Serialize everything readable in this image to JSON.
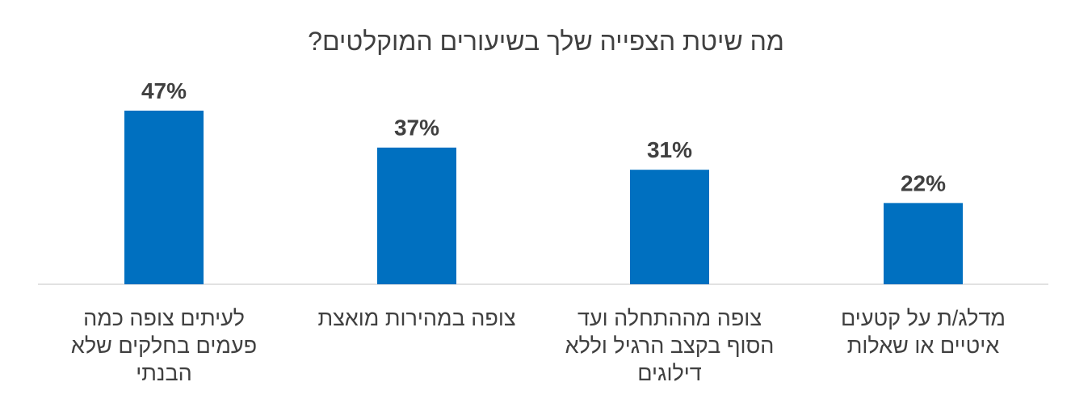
{
  "chart_data": {
    "type": "bar",
    "title": "מה שיטת הצפייה שלך בשיעורים המוקלטים?",
    "categories": [
      "לעיתים צופה כמה פעמים בחלקים שלא הבנתי",
      "צופה במהירות מואצת",
      "צופה מההתחלה ועד הסוף בקצב הרגיל וללא דילוגים",
      "מדלג/ת על קטעים איטיים או שאלות"
    ],
    "category_lines": [
      [
        "לעיתים צופה כמה",
        "פעמים בחלקים שלא",
        "הבנתי"
      ],
      [
        "צופה במהירות מואצת"
      ],
      [
        "צופה מההתחלה ועד",
        "הסוף בקצב הרגיל וללא",
        "דילוגים"
      ],
      [
        "מדלג/ת על קטעים",
        "איטיים או שאלות"
      ]
    ],
    "values": [
      47,
      37,
      31,
      22
    ],
    "data_labels": [
      "47%",
      "37%",
      "31%",
      "22%"
    ],
    "ylim": [
      0,
      50
    ],
    "xlabel": "",
    "ylabel": "",
    "grid": false,
    "bar_color": "#0070C0",
    "axis_color": "#D9D9D9",
    "text_color": "#404040"
  }
}
